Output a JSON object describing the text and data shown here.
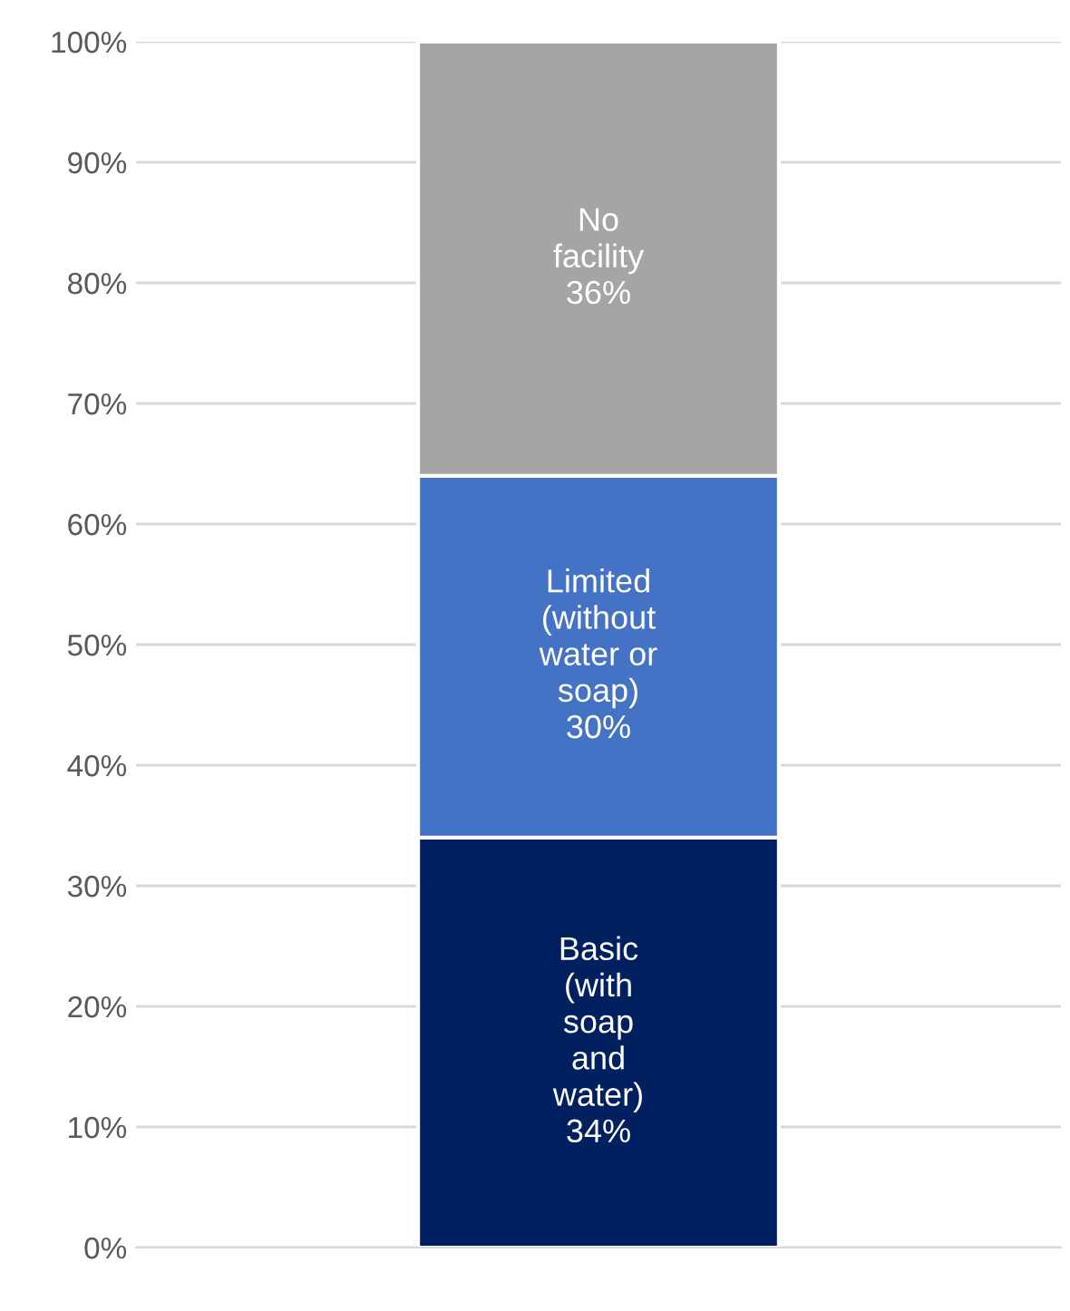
{
  "chart_data": {
    "type": "bar",
    "stacked": true,
    "categories": [
      null
    ],
    "series": [
      {
        "name": "Basic\n(with\nsoap\nand\nwater)",
        "color": "#002060",
        "values": [
          34
        ],
        "value_labels": [
          "34%"
        ]
      },
      {
        "name": "Limited\n(without\nwater or\nsoap)",
        "color": "#4472c4",
        "values": [
          30
        ],
        "value_labels": [
          "30%"
        ]
      },
      {
        "name": "No\nfacility",
        "color": "#a5a5a5",
        "values": [
          36
        ],
        "value_labels": [
          "36%"
        ]
      }
    ],
    "ylim": [
      0,
      100
    ],
    "yticks": [
      {
        "value": 0,
        "label": "0%"
      },
      {
        "value": 10,
        "label": "10%"
      },
      {
        "value": 20,
        "label": "20%"
      },
      {
        "value": 30,
        "label": "30%"
      },
      {
        "value": 40,
        "label": "40%"
      },
      {
        "value": 50,
        "label": "50%"
      },
      {
        "value": 60,
        "label": "60%"
      },
      {
        "value": 70,
        "label": "70%"
      },
      {
        "value": 80,
        "label": "80%"
      },
      {
        "value": 90,
        "label": "90%"
      },
      {
        "value": 100,
        "label": "100%"
      }
    ],
    "grid": "y",
    "legend": false
  }
}
